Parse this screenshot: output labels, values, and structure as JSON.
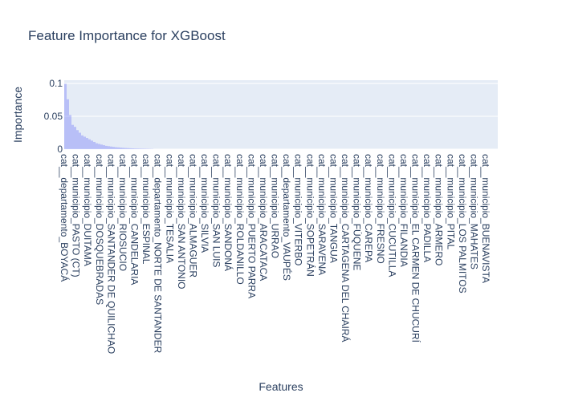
{
  "chart_data": {
    "type": "bar",
    "title": "Feature Importance for XGBoost",
    "xlabel": "Features",
    "ylabel": "Importance",
    "ylim": [
      0,
      0.105
    ],
    "yticks": [
      0,
      0.05,
      0.1
    ],
    "ytick_labels": [
      "0",
      "0.05",
      "0.1"
    ],
    "grid": true,
    "bar_color": "#636efa",
    "background_color": "#e5ecf6",
    "categories": [
      "cat__departamento_BOYACÁ",
      "cat__municipio_PASTO (CT)",
      "cat__municipio_DUITAMA",
      "cat__municipio_DOSQUEBRADAS",
      "cat__municipio_SANTANDER DE QUILICHAO",
      "cat__municipio_RIOSUCIO",
      "cat__municipio_CANDELARIA",
      "cat__municipio_ESPINAL",
      "cat__departamento_NORTE DE SANTANDER",
      "cat__municipio_TESALIA",
      "cat__municipio_SAN ANTONIO",
      "cat__municipio_ALMAGUER",
      "cat__municipio_SILVIA",
      "cat__municipio_SAN LUIS",
      "cat__municipio_SANDONÁ",
      "cat__municipio_ROLDANILLO",
      "cat__municipio_PUERTO PARRA",
      "cat__municipio_ARACATACA",
      "cat__municipio_URRAO",
      "cat__departamento_VAUPÉS",
      "cat__municipio_VITERBO",
      "cat__municipio_SOPETRÁN",
      "cat__municipio_SARAVENA",
      "cat__municipio_TANGUA",
      "cat__municipio_CARTAGENA DEL CHAIRÁ",
      "cat__municipio_FÚQUENE",
      "cat__municipio_CAREPA",
      "cat__municipio_FRESNO",
      "cat__municipio_CUCUTILLA",
      "cat__municipio_FILANDIA",
      "cat__municipio_EL CARMEN DE CHUCURÍ",
      "cat__municipio_PADILLA",
      "cat__municipio_ARMERO",
      "cat__municipio_PITAL",
      "cat__municipio_LOS PALMITOS",
      "cat__municipio_MAHATES",
      "cat__municipio_BUENAVISTA"
    ],
    "values": [
      0.0995,
      0.076,
      0.052,
      0.037,
      0.034,
      0.029,
      0.025,
      0.021,
      0.019,
      0.017,
      0.015,
      0.013,
      0.011,
      0.009,
      0.008,
      0.007,
      0.006,
      0.005,
      0.0045,
      0.004,
      0.0035,
      0.003,
      0.0027,
      0.0024,
      0.0021,
      0.0018,
      0.0016,
      0.0014,
      0.0012,
      0.001,
      0.0009,
      0.0008,
      0.0007,
      0.0006,
      0.0005,
      0.0004,
      0.0003
    ]
  }
}
